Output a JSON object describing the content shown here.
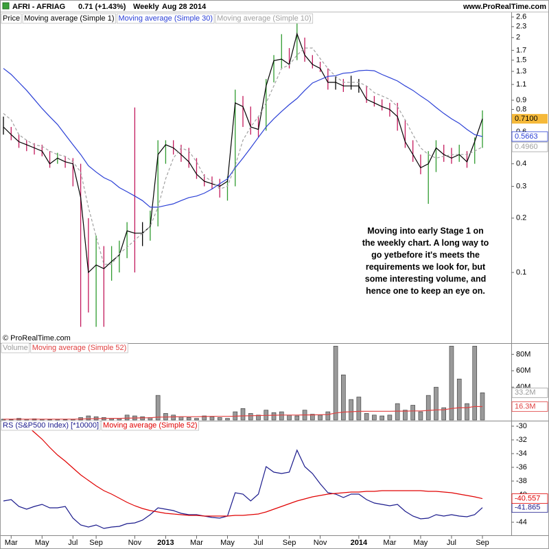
{
  "header": {
    "symbol": "AFRI - AFRIAG",
    "quote": "0.71 (+1.43%)",
    "period": "Weekly",
    "date": "Aug 28 2014",
    "site": "www.ProRealTime.com"
  },
  "chart_data": [
    {
      "type": "stock",
      "log_scale": true,
      "ylim": [
        0.0406,
        2.76
      ],
      "yticks": [
        2.6,
        2.3,
        2,
        1.7,
        1.5,
        1.3,
        1.1,
        0.9,
        0.8,
        0.6,
        0.4,
        0.3,
        0.2,
        0.1
      ],
      "watermark": "© ProRealTime.com",
      "annotation": [
        "Moving into early Stage 1 on",
        "the weekly chart. A long way to",
        "go yetbefore it's meets the",
        "requirements we look for, but",
        "some interesting volume, and",
        "hence one to keep an eye on."
      ],
      "series": [
        {
          "name": "Price",
          "color": "#000000",
          "up_color": "#2e9a2e",
          "down_color": "#c2185b",
          "high": [
            0.73,
            0.64,
            0.58,
            0.54,
            0.52,
            0.51,
            0.47,
            0.46,
            0.44,
            0.43,
            0.4,
            0.2,
            0.16,
            0.14,
            0.14,
            0.15,
            0.19,
            0.82,
            0.19,
            0.22,
            0.54,
            0.54,
            0.54,
            0.51,
            0.49,
            0.43,
            0.35,
            0.34,
            0.33,
            0.34,
            1.03,
            0.95,
            0.83,
            0.73,
            1.18,
            1.6,
            2.09,
            1.75,
            2.4,
            2.0,
            1.6,
            1.47,
            1.35,
            1.23,
            1.18,
            1.23,
            1.18,
            1.08,
            0.95,
            0.91,
            0.87,
            0.87,
            0.7,
            0.54,
            0.45,
            0.47,
            0.54,
            0.51,
            0.49,
            0.51,
            0.47,
            0.56,
            0.79
          ],
          "low": [
            0.58,
            0.54,
            0.49,
            0.47,
            0.45,
            0.44,
            0.38,
            0.4,
            0.38,
            0.3,
            0.05,
            0.06,
            0.05,
            0.05,
            0.09,
            0.1,
            0.12,
            0.1,
            0.14,
            0.15,
            0.18,
            0.4,
            0.45,
            0.41,
            0.38,
            0.33,
            0.3,
            0.29,
            0.26,
            0.25,
            0.3,
            0.64,
            0.58,
            0.56,
            0.61,
            1.13,
            1.35,
            1.35,
            1.5,
            1.47,
            1.35,
            1.29,
            1.03,
            1.03,
            1.0,
            1.03,
            0.99,
            0.87,
            0.83,
            0.79,
            0.73,
            0.61,
            0.49,
            0.41,
            0.35,
            0.24,
            0.36,
            0.41,
            0.4,
            0.41,
            0.38,
            0.4,
            0.49
          ]
        },
        {
          "name": "Moving average (Simple 1)",
          "color": "#000000",
          "label_bg": "#f5b93a",
          "last_label": "0.7100",
          "values": [
            0.64,
            0.58,
            0.53,
            0.51,
            0.49,
            0.47,
            0.4,
            0.43,
            0.41,
            0.4,
            0.26,
            0.1,
            0.11,
            0.105,
            0.115,
            0.125,
            0.17,
            0.165,
            0.165,
            0.18,
            0.45,
            0.51,
            0.49,
            0.45,
            0.41,
            0.35,
            0.32,
            0.31,
            0.3,
            0.32,
            0.87,
            0.83,
            0.64,
            0.62,
            1.08,
            1.49,
            1.52,
            1.42,
            2.1,
            1.6,
            1.42,
            1.35,
            1.13,
            1.13,
            1.08,
            1.08,
            1.08,
            0.91,
            0.87,
            0.83,
            0.8,
            0.73,
            0.53,
            0.45,
            0.38,
            0.4,
            0.49,
            0.45,
            0.43,
            0.45,
            0.41,
            0.53,
            0.71
          ]
        },
        {
          "name": "Moving average (Simple 30)",
          "color": "#2a3fd6",
          "last_label": "0.5663",
          "values": [
            1.35,
            1.25,
            1.13,
            1.02,
            0.91,
            0.81,
            0.73,
            0.66,
            0.58,
            0.51,
            0.45,
            0.39,
            0.36,
            0.335,
            0.32,
            0.295,
            0.28,
            0.265,
            0.25,
            0.23,
            0.23,
            0.235,
            0.24,
            0.25,
            0.26,
            0.265,
            0.275,
            0.29,
            0.31,
            0.33,
            0.38,
            0.43,
            0.49,
            0.56,
            0.64,
            0.71,
            0.78,
            0.85,
            0.92,
            1.02,
            1.12,
            1.17,
            1.22,
            1.23,
            1.27,
            1.28,
            1.31,
            1.32,
            1.31,
            1.25,
            1.2,
            1.15,
            1.08,
            1.02,
            0.95,
            0.89,
            0.82,
            0.76,
            0.71,
            0.67,
            0.62,
            0.58,
            0.5663
          ]
        },
        {
          "name": "Moving average (Simple 10)",
          "color": "#a0a0a0",
          "dash": true,
          "last_label": "0.4960",
          "values": [
            0.76,
            0.7,
            0.58,
            0.54,
            0.51,
            0.5,
            0.47,
            0.45,
            0.44,
            0.41,
            0.36,
            0.23,
            0.158,
            0.111,
            0.111,
            0.127,
            0.138,
            0.151,
            0.165,
            0.18,
            0.23,
            0.33,
            0.43,
            0.49,
            0.47,
            0.41,
            0.34,
            0.32,
            0.29,
            0.3,
            0.39,
            0.54,
            0.64,
            0.73,
            0.87,
            1.08,
            1.35,
            1.41,
            1.6,
            1.75,
            1.75,
            1.53,
            1.35,
            1.22,
            1.13,
            1.13,
            1.13,
            1.08,
            0.99,
            0.95,
            0.91,
            0.83,
            0.7,
            0.58,
            0.49,
            0.45,
            0.43,
            0.44,
            0.45,
            0.45,
            0.45,
            0.47,
            0.496
          ]
        }
      ]
    },
    {
      "type": "bar",
      "ylim": [
        0,
        92
      ],
      "yticks": [
        {
          "value": 80,
          "label": "80M"
        },
        {
          "value": 60,
          "label": "60M"
        },
        {
          "value": 40,
          "label": "40M"
        }
      ],
      "series": [
        {
          "name": "Volume",
          "color": "#9a9a9a",
          "last_label": "33.2M",
          "values": [
            1,
            0.5,
            2,
            1,
            1.5,
            1,
            0.5,
            1,
            0.5,
            1,
            3,
            5,
            4,
            3,
            2,
            2,
            6,
            5,
            4,
            3,
            30,
            8,
            6,
            4,
            3,
            2,
            5,
            4,
            3,
            2,
            10,
            14,
            8,
            6,
            12,
            9,
            10,
            6,
            5,
            12,
            7,
            6,
            10,
            90,
            55,
            25,
            28,
            8,
            6,
            5,
            6,
            20,
            12,
            18,
            10,
            30,
            40,
            15,
            90,
            50,
            20,
            90,
            33.2
          ]
        },
        {
          "name": "Moving average (Simple 52)",
          "color": "#e04040",
          "last_label": "16.3M",
          "values": [
            1,
            1,
            1,
            1,
            1,
            1,
            1,
            1,
            1,
            1,
            1.2,
            1.4,
            1.6,
            1.8,
            2,
            2,
            2.2,
            2.4,
            2.6,
            2.8,
            3.4,
            3.6,
            3.8,
            4,
            4,
            4,
            4.2,
            4.4,
            4.4,
            4.4,
            4.6,
            5,
            5.2,
            5.4,
            5.6,
            5.8,
            6,
            6,
            6,
            6.2,
            6.2,
            6.4,
            6.6,
            8.5,
            9.6,
            10,
            10.5,
            10.6,
            10.6,
            10.6,
            10.6,
            10.8,
            10.8,
            11,
            11,
            11.6,
            12.3,
            12.5,
            14,
            15,
            15,
            16.5,
            16.3
          ]
        }
      ]
    },
    {
      "type": "line",
      "ylim": [
        -45.9,
        -29.3
      ],
      "yticks": [
        -30,
        -32,
        -34,
        -36,
        -38,
        -40,
        -44
      ],
      "categories": [
        null,
        "Mar",
        null,
        null,
        null,
        "May",
        null,
        null,
        null,
        "Jul",
        null,
        null,
        "Sep",
        null,
        null,
        null,
        null,
        "Nov",
        null,
        null,
        null,
        "2013",
        null,
        null,
        null,
        "Mar",
        null,
        null,
        null,
        "May",
        null,
        null,
        null,
        "Jul",
        null,
        null,
        null,
        "Sep",
        null,
        null,
        null,
        "Nov",
        null,
        null,
        null,
        null,
        "2014",
        null,
        null,
        null,
        "Mar",
        null,
        null,
        null,
        "May",
        null,
        null,
        null,
        "Jul",
        null,
        null,
        null,
        "Sep"
      ],
      "series": [
        {
          "name": "RS (S&P500 Index) [*10000]",
          "color": "#1a1a8c",
          "last_label": "-41.865",
          "values": [
            -40.9,
            -40.7,
            -41.7,
            -42.1,
            -41.7,
            -41.4,
            -41.9,
            -41.9,
            -41.7,
            -43.4,
            -44.4,
            -44.7,
            -44.4,
            -44.9,
            -44.7,
            -44.6,
            -44.2,
            -44.1,
            -43.7,
            -42.9,
            -41.9,
            -42.1,
            -42.3,
            -42.7,
            -42.9,
            -42.9,
            -43.1,
            -43.3,
            -43.4,
            -43.1,
            -39.7,
            -39.9,
            -40.9,
            -39.9,
            -35.9,
            -36.7,
            -36.9,
            -36.7,
            -33.5,
            -35.9,
            -36.9,
            -38.4,
            -39.7,
            -39.9,
            -40.4,
            -39.9,
            -39.9,
            -40.7,
            -41.2,
            -41.4,
            -41.6,
            -41.4,
            -42.4,
            -43.1,
            -43.5,
            -43.4,
            -42.9,
            -43.1,
            -42.9,
            -43.1,
            -43.2,
            -42.9,
            -41.865
          ]
        },
        {
          "name": "Moving average (Simple 52)",
          "color": "#e00000",
          "last_label": "-40.557",
          "values": [
            null,
            null,
            null,
            -29.9,
            -30.9,
            -31.9,
            -33.1,
            -34.2,
            -35.1,
            -36.1,
            -37.1,
            -37.9,
            -38.7,
            -39.4,
            -39.9,
            -40.5,
            -41.1,
            -41.6,
            -42,
            -42.3,
            -42.5,
            -42.7,
            -42.8,
            -42.9,
            -43,
            -43,
            -43.1,
            -43.1,
            -43.1,
            -43.1,
            -43,
            -43,
            -42.9,
            -42.8,
            -42.5,
            -42.1,
            -41.7,
            -41.3,
            -40.9,
            -40.6,
            -40.3,
            -40.1,
            -39.9,
            -39.8,
            -39.7,
            -39.6,
            -39.6,
            -39.5,
            -39.5,
            -39.4,
            -39.4,
            -39.4,
            -39.4,
            -39.4,
            -39.4,
            -39.5,
            -39.5,
            -39.6,
            -39.7,
            -39.9,
            -40.1,
            -40.3,
            -40.557
          ]
        }
      ]
    }
  ]
}
